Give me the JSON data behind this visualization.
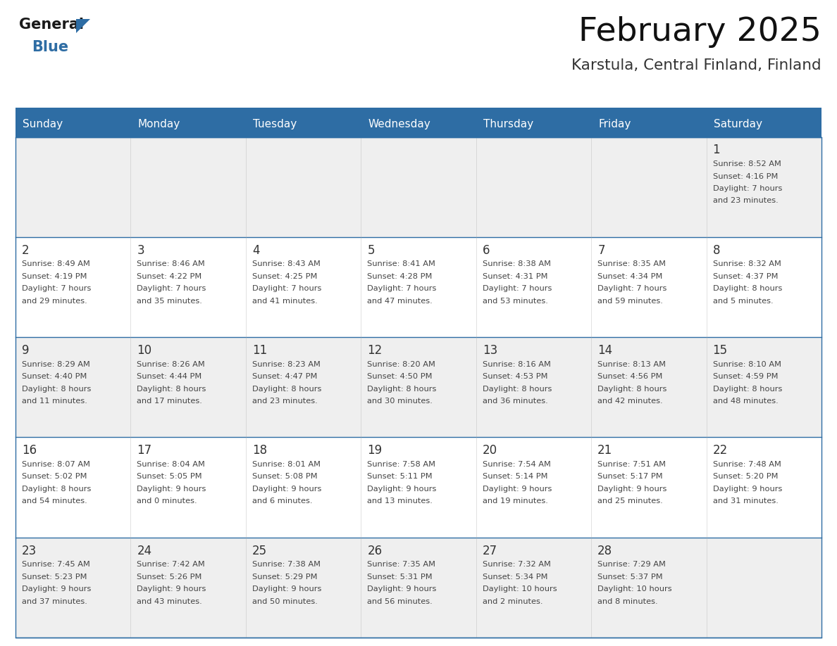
{
  "title": "February 2025",
  "subtitle": "Karstula, Central Finland, Finland",
  "header_bg": "#2E6DA4",
  "header_text_color": "#FFFFFF",
  "border_color": "#2E6DA4",
  "text_color": "#444444",
  "day_number_color": "#333333",
  "days_of_week": [
    "Sunday",
    "Monday",
    "Tuesday",
    "Wednesday",
    "Thursday",
    "Friday",
    "Saturday"
  ],
  "row_bg_colors": [
    "#EEEEEE",
    "#FFFFFF",
    "#EEEEEE",
    "#FFFFFF",
    "#EEEEEE"
  ],
  "calendar_data": [
    [
      null,
      null,
      null,
      null,
      null,
      null,
      {
        "day": 1,
        "sunrise": "8:52 AM",
        "sunset": "4:16 PM",
        "daylight_h": "7 hours",
        "daylight_m": "and 23 minutes."
      }
    ],
    [
      {
        "day": 2,
        "sunrise": "8:49 AM",
        "sunset": "4:19 PM",
        "daylight_h": "7 hours",
        "daylight_m": "and 29 minutes."
      },
      {
        "day": 3,
        "sunrise": "8:46 AM",
        "sunset": "4:22 PM",
        "daylight_h": "7 hours",
        "daylight_m": "and 35 minutes."
      },
      {
        "day": 4,
        "sunrise": "8:43 AM",
        "sunset": "4:25 PM",
        "daylight_h": "7 hours",
        "daylight_m": "and 41 minutes."
      },
      {
        "day": 5,
        "sunrise": "8:41 AM",
        "sunset": "4:28 PM",
        "daylight_h": "7 hours",
        "daylight_m": "and 47 minutes."
      },
      {
        "day": 6,
        "sunrise": "8:38 AM",
        "sunset": "4:31 PM",
        "daylight_h": "7 hours",
        "daylight_m": "and 53 minutes."
      },
      {
        "day": 7,
        "sunrise": "8:35 AM",
        "sunset": "4:34 PM",
        "daylight_h": "7 hours",
        "daylight_m": "and 59 minutes."
      },
      {
        "day": 8,
        "sunrise": "8:32 AM",
        "sunset": "4:37 PM",
        "daylight_h": "8 hours",
        "daylight_m": "and 5 minutes."
      }
    ],
    [
      {
        "day": 9,
        "sunrise": "8:29 AM",
        "sunset": "4:40 PM",
        "daylight_h": "8 hours",
        "daylight_m": "and 11 minutes."
      },
      {
        "day": 10,
        "sunrise": "8:26 AM",
        "sunset": "4:44 PM",
        "daylight_h": "8 hours",
        "daylight_m": "and 17 minutes."
      },
      {
        "day": 11,
        "sunrise": "8:23 AM",
        "sunset": "4:47 PM",
        "daylight_h": "8 hours",
        "daylight_m": "and 23 minutes."
      },
      {
        "day": 12,
        "sunrise": "8:20 AM",
        "sunset": "4:50 PM",
        "daylight_h": "8 hours",
        "daylight_m": "and 30 minutes."
      },
      {
        "day": 13,
        "sunrise": "8:16 AM",
        "sunset": "4:53 PM",
        "daylight_h": "8 hours",
        "daylight_m": "and 36 minutes."
      },
      {
        "day": 14,
        "sunrise": "8:13 AM",
        "sunset": "4:56 PM",
        "daylight_h": "8 hours",
        "daylight_m": "and 42 minutes."
      },
      {
        "day": 15,
        "sunrise": "8:10 AM",
        "sunset": "4:59 PM",
        "daylight_h": "8 hours",
        "daylight_m": "and 48 minutes."
      }
    ],
    [
      {
        "day": 16,
        "sunrise": "8:07 AM",
        "sunset": "5:02 PM",
        "daylight_h": "8 hours",
        "daylight_m": "and 54 minutes."
      },
      {
        "day": 17,
        "sunrise": "8:04 AM",
        "sunset": "5:05 PM",
        "daylight_h": "9 hours",
        "daylight_m": "and 0 minutes."
      },
      {
        "day": 18,
        "sunrise": "8:01 AM",
        "sunset": "5:08 PM",
        "daylight_h": "9 hours",
        "daylight_m": "and 6 minutes."
      },
      {
        "day": 19,
        "sunrise": "7:58 AM",
        "sunset": "5:11 PM",
        "daylight_h": "9 hours",
        "daylight_m": "and 13 minutes."
      },
      {
        "day": 20,
        "sunrise": "7:54 AM",
        "sunset": "5:14 PM",
        "daylight_h": "9 hours",
        "daylight_m": "and 19 minutes."
      },
      {
        "day": 21,
        "sunrise": "7:51 AM",
        "sunset": "5:17 PM",
        "daylight_h": "9 hours",
        "daylight_m": "and 25 minutes."
      },
      {
        "day": 22,
        "sunrise": "7:48 AM",
        "sunset": "5:20 PM",
        "daylight_h": "9 hours",
        "daylight_m": "and 31 minutes."
      }
    ],
    [
      {
        "day": 23,
        "sunrise": "7:45 AM",
        "sunset": "5:23 PM",
        "daylight_h": "9 hours",
        "daylight_m": "and 37 minutes."
      },
      {
        "day": 24,
        "sunrise": "7:42 AM",
        "sunset": "5:26 PM",
        "daylight_h": "9 hours",
        "daylight_m": "and 43 minutes."
      },
      {
        "day": 25,
        "sunrise": "7:38 AM",
        "sunset": "5:29 PM",
        "daylight_h": "9 hours",
        "daylight_m": "and 50 minutes."
      },
      {
        "day": 26,
        "sunrise": "7:35 AM",
        "sunset": "5:31 PM",
        "daylight_h": "9 hours",
        "daylight_m": "and 56 minutes."
      },
      {
        "day": 27,
        "sunrise": "7:32 AM",
        "sunset": "5:34 PM",
        "daylight_h": "10 hours",
        "daylight_m": "and 2 minutes."
      },
      {
        "day": 28,
        "sunrise": "7:29 AM",
        "sunset": "5:37 PM",
        "daylight_h": "10 hours",
        "daylight_m": "and 8 minutes."
      },
      null
    ]
  ],
  "logo_general_color": "#1a1a1a",
  "logo_blue_color": "#2E6DA4",
  "logo_triangle_color": "#2E6DA4"
}
